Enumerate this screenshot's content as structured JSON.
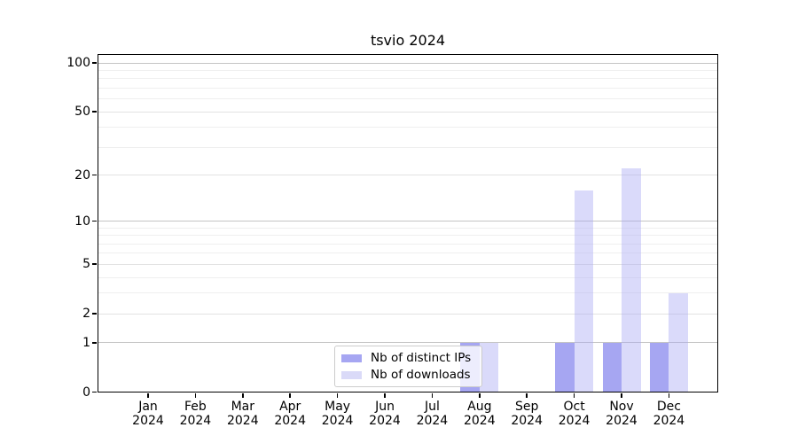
{
  "figure": {
    "background": "#ffffff"
  },
  "chart_data": {
    "type": "bar",
    "title": "tsvio 2024",
    "categories": [
      "Jan 2024",
      "Feb 2024",
      "Mar 2024",
      "Apr 2024",
      "May 2024",
      "Jun 2024",
      "Jul 2024",
      "Aug 2024",
      "Sep 2024",
      "Oct 2024",
      "Nov 2024",
      "Dec 2024"
    ],
    "series": [
      {
        "name": "Nb of distinct IPs",
        "color": "#a6a6f2",
        "values": [
          0,
          0,
          0,
          0,
          0,
          0,
          0,
          1,
          0,
          1,
          1,
          1
        ]
      },
      {
        "name": "Nb of downloads",
        "color": "rgba(166,166,242,0.42)",
        "legend_color": "#dadaf8",
        "values": [
          0,
          0,
          0,
          0,
          0,
          0,
          0,
          1,
          0,
          16,
          22,
          3
        ]
      }
    ],
    "y_axis": {
      "scale": "log1p",
      "ticks": [
        0,
        1,
        2,
        5,
        10,
        20,
        50,
        100
      ],
      "minor_gridlines": [
        3,
        4,
        6,
        7,
        8,
        9,
        30,
        40,
        60,
        70,
        80,
        90
      ],
      "range_max": 111
    },
    "grid": {
      "decade_line_color": "#c4c4c4",
      "major_line_color": "#e2e2e2",
      "minor_line_color": "#efefef"
    },
    "legend": {
      "position": "lower center"
    }
  }
}
